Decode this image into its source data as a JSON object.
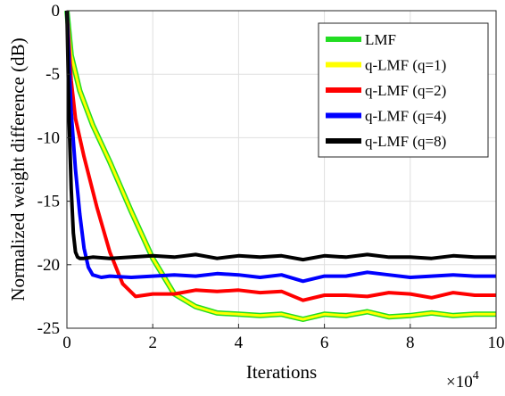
{
  "chart_data": {
    "type": "line",
    "xlabel": "Iterations",
    "ylabel": "Normalized weight difference (dB)",
    "x_multiplier": "×10",
    "x_multiplier_exponent": "4",
    "xlim": [
      0,
      10
    ],
    "ylim": [
      -25,
      0
    ],
    "x_ticks": [
      0,
      2,
      4,
      6,
      8,
      10
    ],
    "y_ticks": [
      0,
      -5,
      -10,
      -15,
      -20,
      -25
    ],
    "grid": true,
    "legend_position": "top-right",
    "series": [
      {
        "name": "LMF",
        "color": "#22dd22",
        "x": [
          0,
          0.1,
          0.3,
          0.6,
          1.0,
          1.5,
          2.0,
          2.5,
          3.0,
          3.5,
          4.0,
          4.5,
          5.0,
          5.5,
          6.0,
          6.5,
          7.0,
          7.5,
          8.0,
          8.5,
          9.0,
          9.5,
          10.0
        ],
        "y": [
          0,
          -3.5,
          -6.3,
          -9.0,
          -11.9,
          -15.8,
          -19.5,
          -22.3,
          -23.3,
          -23.8,
          -23.9,
          -24.0,
          -23.9,
          -24.3,
          -23.9,
          -24.0,
          -23.7,
          -24.1,
          -24.0,
          -23.8,
          -24.0,
          -23.9,
          -23.9
        ]
      },
      {
        "name": "q-LMF (q=1)",
        "color": "#ffff00",
        "x": [
          0,
          0.1,
          0.3,
          0.6,
          1.0,
          1.5,
          2.0,
          2.5,
          3.0,
          3.5,
          4.0,
          4.5,
          5.0,
          5.5,
          6.0,
          6.5,
          7.0,
          7.5,
          8.0,
          8.5,
          9.0,
          9.5,
          10.0
        ],
        "y": [
          0,
          -3.5,
          -6.3,
          -9.0,
          -11.9,
          -15.8,
          -19.5,
          -22.3,
          -23.3,
          -23.8,
          -23.9,
          -24.0,
          -23.9,
          -24.3,
          -23.9,
          -24.0,
          -23.7,
          -24.1,
          -24.0,
          -23.8,
          -24.0,
          -23.9,
          -23.9
        ]
      },
      {
        "name": "q-LMF (q=2)",
        "color": "#ff0000",
        "x": [
          0,
          0.1,
          0.2,
          0.4,
          0.7,
          1.0,
          1.3,
          1.6,
          1.8,
          2.0,
          2.5,
          3.0,
          3.5,
          4.0,
          4.5,
          5.0,
          5.5,
          6.0,
          6.5,
          7.0,
          7.5,
          8.0,
          8.5,
          9.0,
          9.5,
          10.0
        ],
        "y": [
          0,
          -5.5,
          -8.5,
          -11.5,
          -15.5,
          -19.0,
          -21.5,
          -22.5,
          -22.4,
          -22.3,
          -22.3,
          -22.0,
          -22.1,
          -22.0,
          -22.2,
          -22.1,
          -22.8,
          -22.4,
          -22.4,
          -22.5,
          -22.2,
          -22.3,
          -22.6,
          -22.2,
          -22.4,
          -22.4
        ]
      },
      {
        "name": "q-LMF (q=4)",
        "color": "#0000ff",
        "x": [
          0,
          0.1,
          0.2,
          0.3,
          0.4,
          0.5,
          0.6,
          0.8,
          1.0,
          1.5,
          2.0,
          2.5,
          3.0,
          3.5,
          4.0,
          4.5,
          5.0,
          5.5,
          6.0,
          6.5,
          7.0,
          7.5,
          8.0,
          8.5,
          9.0,
          9.5,
          10.0
        ],
        "y": [
          0,
          -8.0,
          -12.5,
          -16.0,
          -18.7,
          -20.2,
          -20.8,
          -21.0,
          -20.9,
          -21.0,
          -20.9,
          -20.8,
          -20.9,
          -20.7,
          -20.8,
          -21.0,
          -20.8,
          -21.3,
          -20.9,
          -20.9,
          -20.6,
          -20.8,
          -21.0,
          -20.9,
          -20.8,
          -20.9,
          -20.9
        ]
      },
      {
        "name": "q-LMF (q=8)",
        "color": "#000000",
        "x": [
          0,
          0.05,
          0.1,
          0.15,
          0.2,
          0.25,
          0.3,
          0.4,
          0.6,
          1.0,
          1.5,
          2.0,
          2.5,
          3.0,
          3.5,
          4.0,
          4.5,
          5.0,
          5.5,
          6.0,
          6.5,
          7.0,
          7.5,
          8.0,
          8.5,
          9.0,
          9.5,
          10.0
        ],
        "y": [
          0,
          -8.5,
          -14.0,
          -17.5,
          -19.0,
          -19.4,
          -19.5,
          -19.5,
          -19.4,
          -19.5,
          -19.4,
          -19.3,
          -19.4,
          -19.2,
          -19.5,
          -19.3,
          -19.4,
          -19.3,
          -19.6,
          -19.3,
          -19.4,
          -19.2,
          -19.4,
          -19.4,
          -19.5,
          -19.3,
          -19.4,
          -19.4
        ]
      }
    ]
  }
}
